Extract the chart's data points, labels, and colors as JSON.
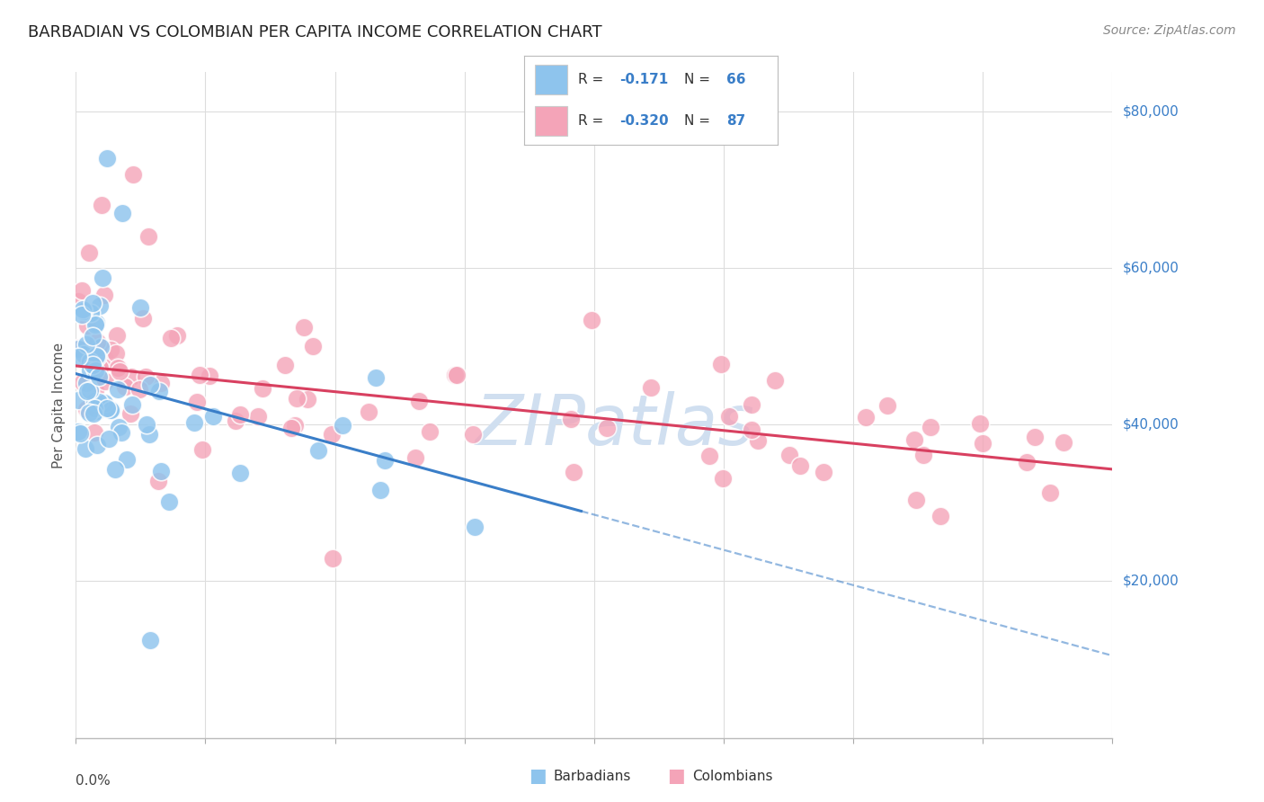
{
  "title": "BARBADIAN VS COLOMBIAN PER CAPITA INCOME CORRELATION CHART",
  "source": "Source: ZipAtlas.com",
  "ylabel": "Per Capita Income",
  "xmin": 0.0,
  "xmax": 0.4,
  "ymin": 0,
  "ymax": 85000,
  "R_barbadian": -0.171,
  "N_barbadian": 66,
  "R_colombian": -0.32,
  "N_colombian": 87,
  "color_barbadian": "#8EC4ED",
  "color_colombian": "#F4A4B8",
  "line_color_barbadian": "#3A7EC8",
  "line_color_colombian": "#D84060",
  "watermark": "ZIPatlas",
  "watermark_color": "#D0DFF0",
  "title_fontsize": 13,
  "source_fontsize": 10,
  "legend_text_color": "#3A7EC8",
  "ytick_vals": [
    0,
    20000,
    40000,
    60000,
    80000
  ],
  "ytick_labels_right": [
    "",
    "$20,000",
    "$40,000",
    "$60,000",
    "$80,000"
  ]
}
